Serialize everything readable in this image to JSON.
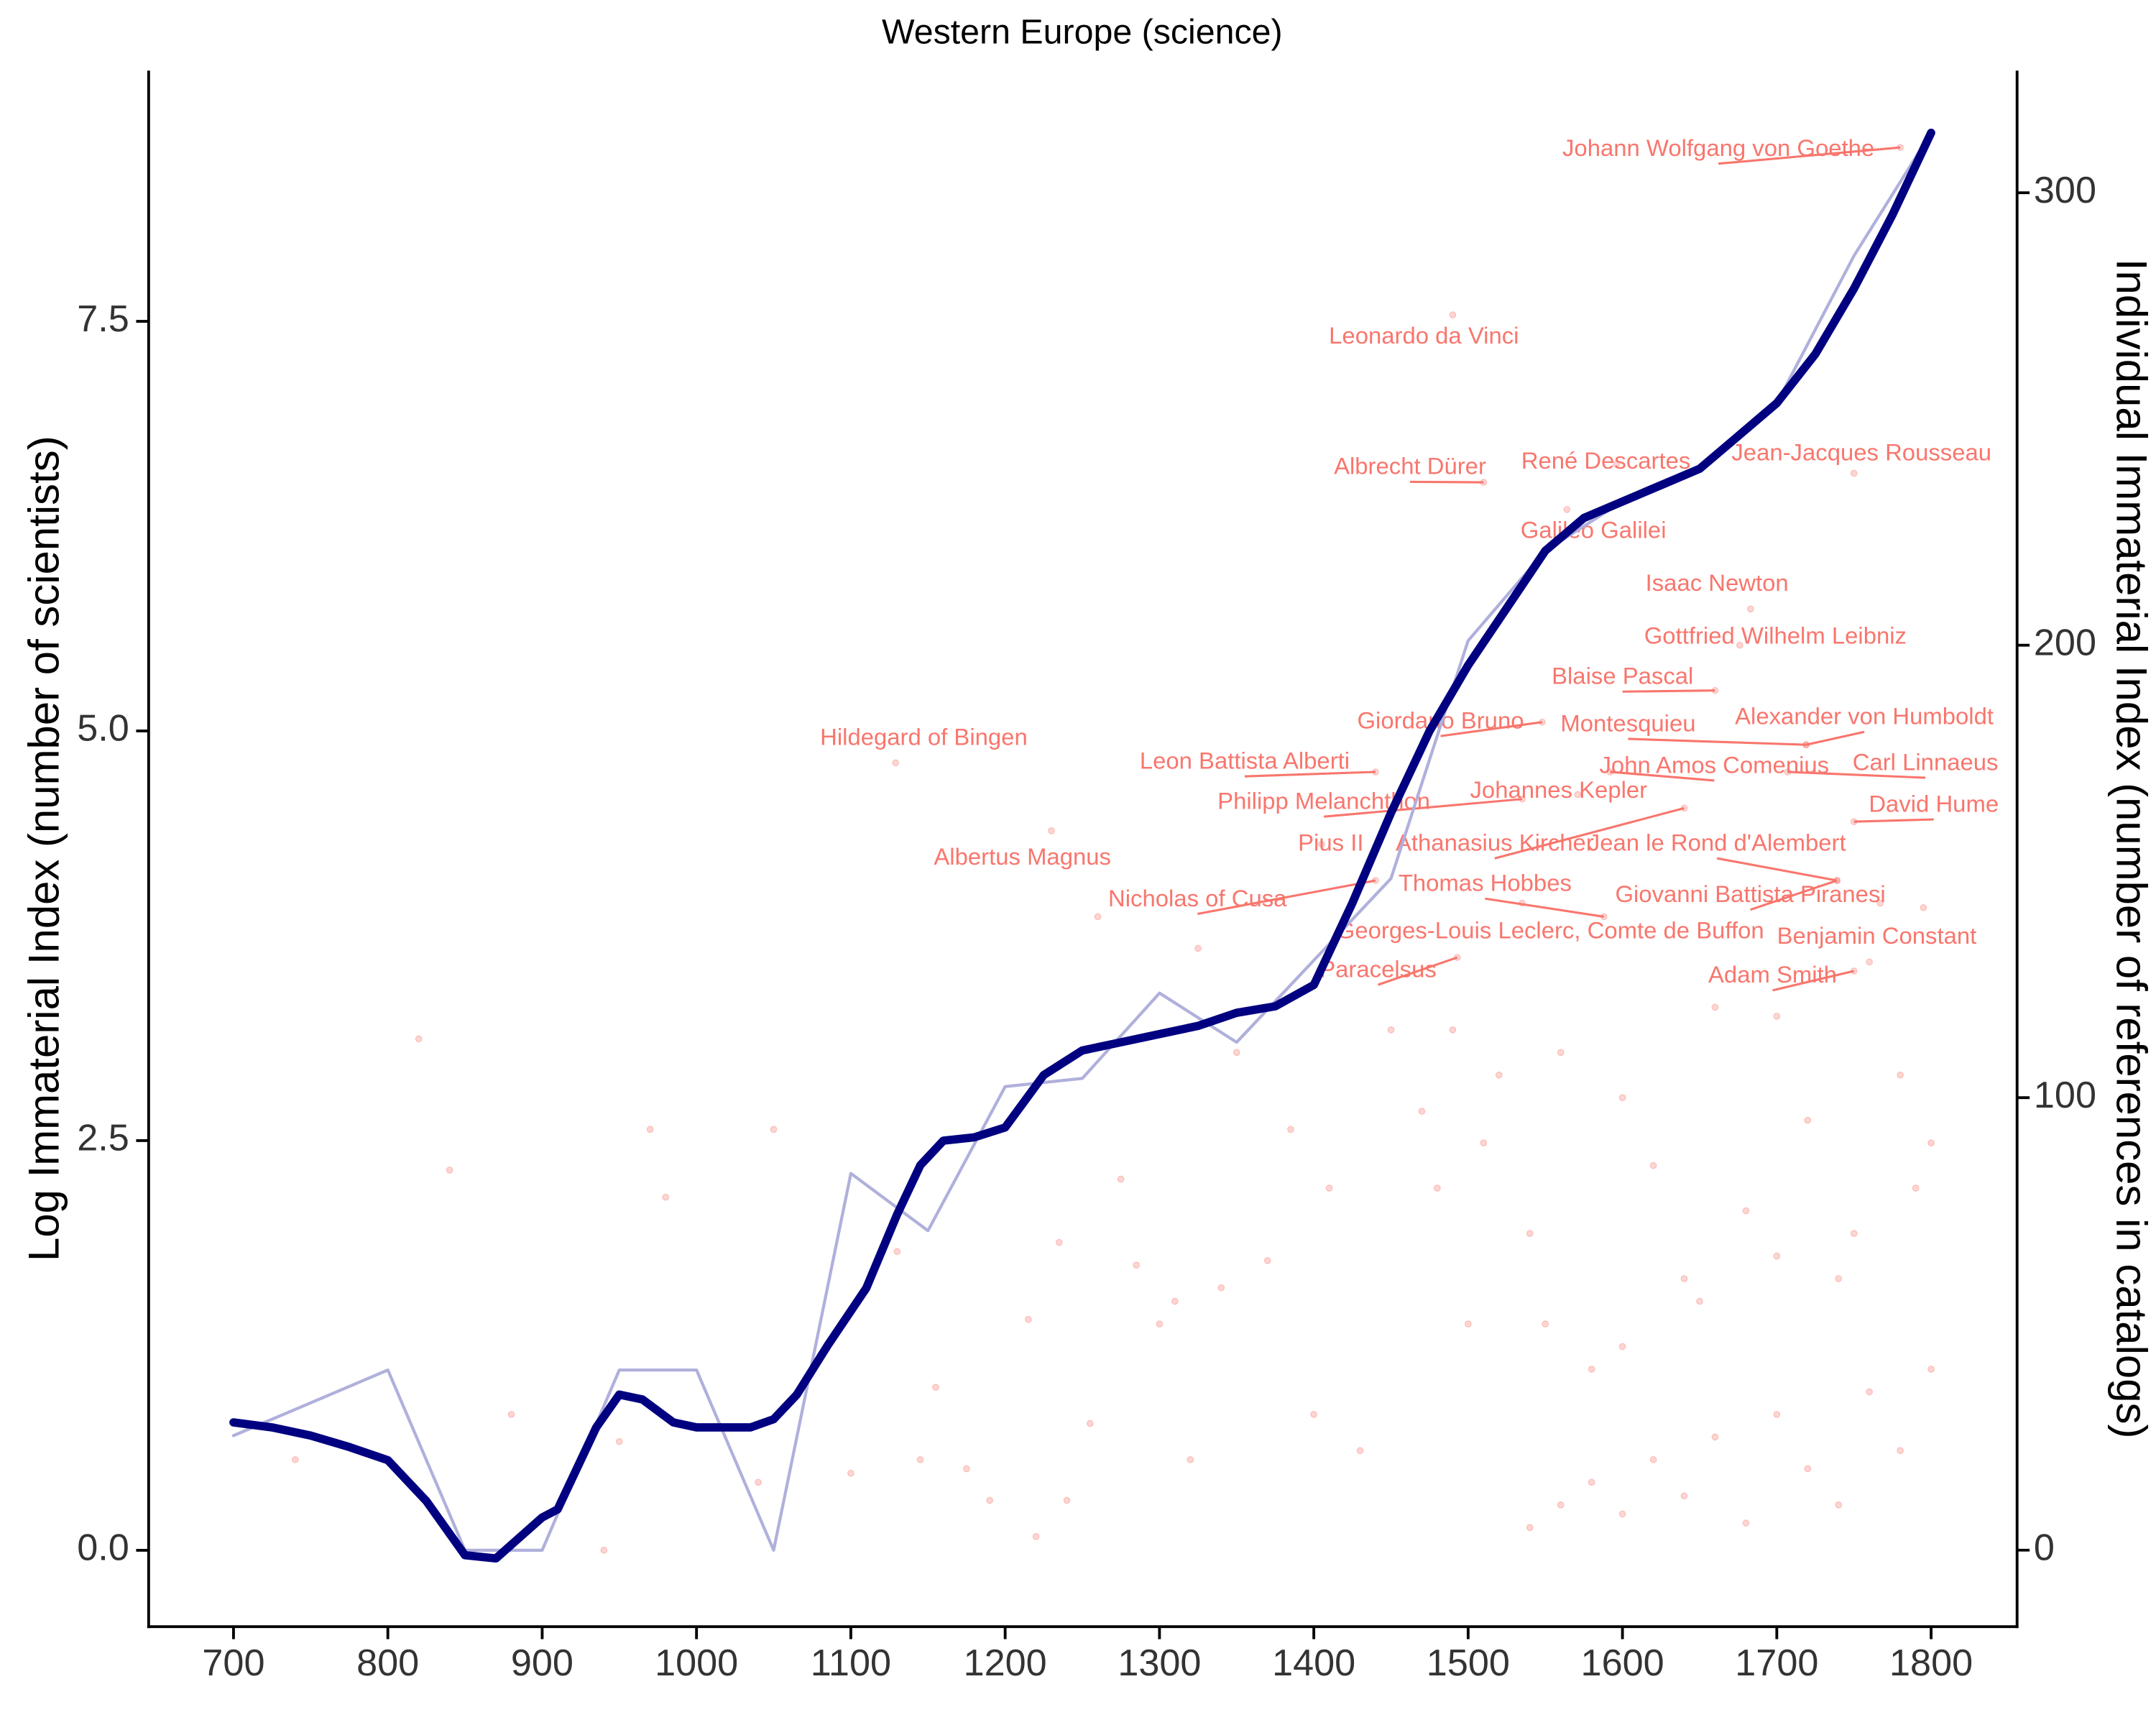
{
  "chart_data": {
    "type": "line",
    "title": "Western Europe (science)",
    "y_label": "Log Immaterial Index (number of scientists)",
    "y2_label": "Individual Immaterial Index (number of references in catalogs)",
    "xlim": [
      645,
      1855.7
    ],
    "xticks": [
      700,
      800,
      900,
      1000,
      1100,
      1200,
      1300,
      1400,
      1500,
      1600,
      1700,
      1800
    ],
    "ylim": [
      -0.466,
      9.03
    ],
    "yticks": [
      {
        "value": 0,
        "label": "0.0"
      },
      2.5,
      {
        "value": 5,
        "label": "5.0"
      },
      7.5
    ],
    "y2lim": [
      -16.9,
      327
    ],
    "y2ticks": [
      0,
      100,
      200,
      300
    ],
    "series": [
      {
        "color": "#b0b0dc",
        "x": [
          700,
          800,
          850,
          900,
          950,
          1000,
          1050,
          1100,
          1150,
          1200,
          1250,
          1300,
          1350,
          1400,
          1450,
          1500,
          1550,
          1600,
          1650,
          1700,
          1750,
          1800
        ],
        "values": [
          0.7,
          1.1,
          0.0,
          0.0,
          1.1,
          1.1,
          0.0,
          2.3,
          1.95,
          2.83,
          2.88,
          3.4,
          3.1,
          3.6,
          4.1,
          5.55,
          6.1,
          6.4,
          6.6,
          7.0,
          7.9,
          8.65
        ]
      },
      {
        "color": "#000080",
        "x": [
          700,
          725,
          750,
          775,
          800,
          825,
          850,
          870,
          900,
          910,
          935,
          950,
          965,
          985,
          1000,
          1035,
          1050,
          1065,
          1085,
          1110,
          1130,
          1145,
          1160,
          1180,
          1200,
          1225,
          1250,
          1275,
          1300,
          1325,
          1350,
          1375,
          1400,
          1425,
          1450,
          1475,
          1500,
          1525,
          1550,
          1575,
          1600,
          1625,
          1650,
          1675,
          1700,
          1725,
          1750,
          1775,
          1800
        ],
        "values": [
          0.78,
          0.75,
          0.7,
          0.63,
          0.55,
          0.3,
          -0.03,
          -0.05,
          0.2,
          0.25,
          0.75,
          0.95,
          0.92,
          0.78,
          0.75,
          0.75,
          0.8,
          0.95,
          1.25,
          1.6,
          2.05,
          2.35,
          2.5,
          2.52,
          2.58,
          2.9,
          3.05,
          3.1,
          3.15,
          3.2,
          3.28,
          3.32,
          3.45,
          3.95,
          4.5,
          5.0,
          5.4,
          5.75,
          6.1,
          6.3,
          6.4,
          6.5,
          6.6,
          6.8,
          7.0,
          7.3,
          7.7,
          8.15,
          8.65
        ]
      },
      {
        "type": "scatter",
        "axis": "y2",
        "color": "#f8766d",
        "labels": [
          "Johann Wolfgang von Goethe",
          "Leonardo da Vinci",
          "Albrecht Dürer",
          "René Descartes",
          "Jean-Jacques Rousseau",
          "Galileo Galilei",
          "Isaac Newton",
          "Gottfried Wilhelm Leibniz",
          "Blaise Pascal",
          "Giordano Bruno",
          "Montesquieu",
          "Alexander von Humboldt",
          "John Amos Comenius",
          "Carl Linnaeus",
          "Hildegard of Bingen",
          "Leon Battista Alberti",
          "Philipp Melanchthon",
          "Johannes Kepler",
          "David Hume",
          "Albertus Magnus",
          "Pius II",
          "Athanasius Kircher",
          "Jean le Rond d'Alembert",
          "Nicholas of Cusa",
          "Thomas Hobbes",
          "Giovanni Battista Piranesi",
          "Georges-Louis Leclerc, Comte de Buffon",
          "Benjamin Constant",
          "Paracelsus",
          "Adam Smith"
        ],
        "x": [
          1780,
          1490,
          1510,
          1596,
          1750,
          1564,
          1683,
          1676,
          1660,
          1548,
          1719,
          1719,
          1592,
          1707,
          1129,
          1440,
          1535,
          1571,
          1750,
          1230,
          1405,
          1640,
          1739,
          1440,
          1588,
          1739,
          1535,
          1767,
          1493,
          1750
        ],
        "values": [
          310,
          273,
          236,
          240,
          238,
          230,
          208,
          200,
          190,
          183,
          178,
          178,
          172,
          172,
          174,
          172,
          166,
          167,
          161,
          159,
          156,
          164,
          148,
          148,
          140,
          148,
          143,
          143,
          131,
          128
        ]
      },
      {
        "type": "scatter",
        "axis": "y2",
        "color": "#f8766d",
        "x": [
          740,
          820,
          840,
          880,
          940,
          950,
          970,
          980,
          1050,
          1040,
          1100,
          1130,
          1145,
          1155,
          1175,
          1190,
          1215,
          1220,
          1235,
          1240,
          1255,
          1260,
          1275,
          1285,
          1300,
          1310,
          1320,
          1325,
          1340,
          1350,
          1370,
          1385,
          1400,
          1410,
          1430,
          1450,
          1470,
          1480,
          1490,
          1500,
          1510,
          1520,
          1540,
          1560,
          1580,
          1600,
          1620,
          1640,
          1660,
          1680,
          1700,
          1720,
          1740,
          1760,
          1780,
          1800,
          1795,
          1540,
          1560,
          1580,
          1600,
          1620,
          1640,
          1660,
          1680,
          1700,
          1720,
          1740,
          1760,
          1780,
          1800,
          1550,
          1600,
          1650,
          1700,
          1750,
          1790
        ],
        "values": [
          20,
          113,
          84,
          30,
          0,
          24,
          93,
          78,
          93,
          15,
          17,
          66,
          20,
          36,
          18,
          11,
          51,
          3,
          68,
          11,
          28,
          140,
          82,
          63,
          50,
          55,
          20,
          133,
          58,
          110,
          64,
          93,
          30,
          80,
          22,
          115,
          97,
          80,
          115,
          50,
          90,
          105,
          70,
          110,
          40,
          100,
          85,
          60,
          120,
          75,
          118,
          95,
          60,
          130,
          105,
          90,
          142,
          5,
          10,
          15,
          8,
          20,
          12,
          25,
          6,
          30,
          18,
          10,
          35,
          22,
          40,
          50,
          45,
          55,
          65,
          70,
          80
        ]
      }
    ]
  }
}
